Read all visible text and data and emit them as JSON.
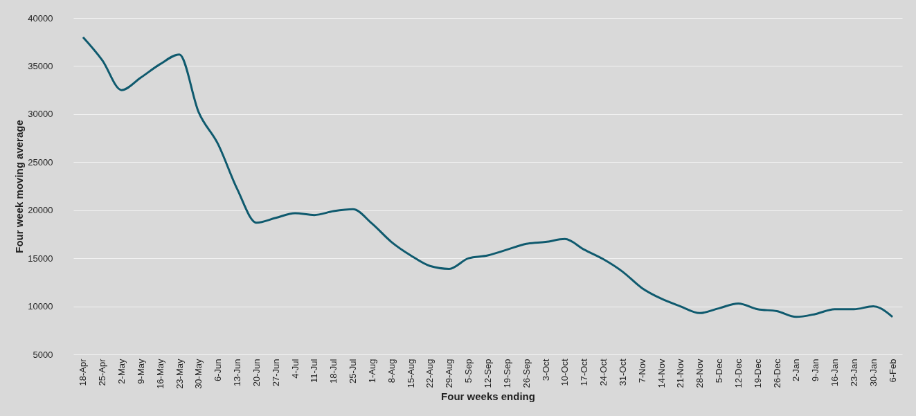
{
  "chart_data": {
    "type": "line",
    "xlabel": "Four weeks ending",
    "ylabel": "Four week moving average",
    "categories": [
      "18-Apr",
      "25-Apr",
      "2-May",
      "9-May",
      "16-May",
      "23-May",
      "30-May",
      "6-Jun",
      "13-Jun",
      "20-Jun",
      "27-Jun",
      "4-Jul",
      "11-Jul",
      "18-Jul",
      "25-Jul",
      "1-Aug",
      "8-Aug",
      "15-Aug",
      "22-Aug",
      "29-Aug",
      "5-Sep",
      "12-Sep",
      "19-Sep",
      "26-Sep",
      "3-Oct",
      "10-Oct",
      "17-Oct",
      "24-Oct",
      "31-Oct",
      "7-Nov",
      "14-Nov",
      "21-Nov",
      "28-Nov",
      "5-Dec",
      "12-Dec",
      "19-Dec",
      "26-Dec",
      "2-Jan",
      "9-Jan",
      "16-Jan",
      "23-Jan",
      "30-Jan",
      "6-Feb"
    ],
    "series": [
      {
        "color": "#0f5a6e",
        "values": [
          38000,
          35600,
          32500,
          33800,
          35200,
          36200,
          30200,
          26900,
          22200,
          18700,
          19200,
          19700,
          19500,
          19900,
          20100,
          18600,
          16700,
          15300,
          14200,
          13900,
          15000,
          15300,
          15900,
          16500,
          16700,
          17000,
          15900,
          14900,
          13600,
          11900,
          10800,
          10000,
          9300,
          9800,
          10300,
          9700,
          9500,
          8900,
          9200,
          9700,
          9700,
          10000,
          8900
        ]
      }
    ],
    "ylim": [
      5000,
      40000
    ],
    "yticks": [
      5000,
      10000,
      15000,
      20000,
      25000,
      30000,
      35000,
      40000
    ],
    "grid": "y",
    "marker": "none",
    "line_style": "solid"
  }
}
